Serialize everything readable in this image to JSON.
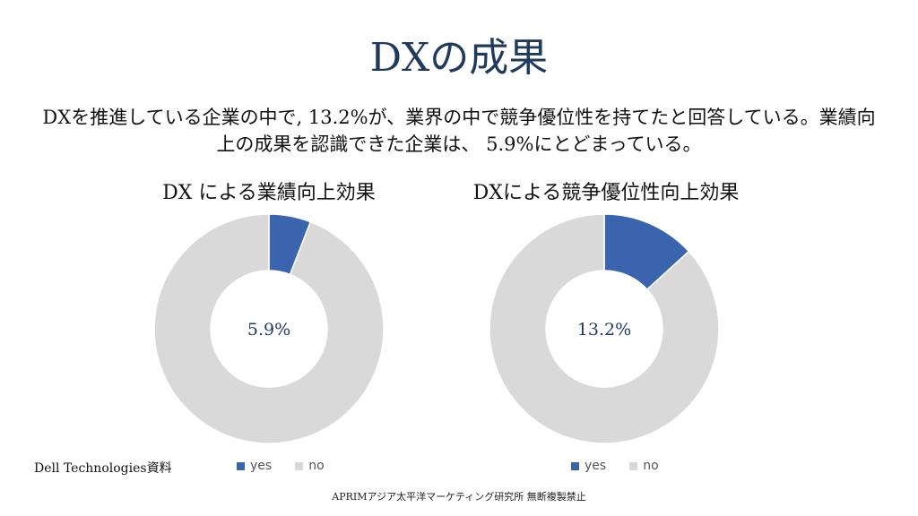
{
  "title": "DXの成果",
  "lead": "DXを推進している企業の中で, 13.2%が、業界の中で競争優位性を持てたと回答している。業績向上の成果を認識できた企業は、 5.9%にとどまっている。",
  "source": "Dell Technologies資料",
  "footer": "APRIMアジア太平洋マーケティング研究所 無断複製禁止",
  "colors": {
    "yes": "#3a64ad",
    "no": "#d9d9d9",
    "title": "#1f3a5c"
  },
  "chart_data": [
    {
      "type": "pie",
      "title": "DX による業績向上効果",
      "categories": [
        "yes",
        "no"
      ],
      "values": [
        5.9,
        94.1
      ],
      "center_label": "5.9%",
      "legend": "bottom"
    },
    {
      "type": "pie",
      "title": "DXによる競争優位性向上効果",
      "categories": [
        "yes",
        "no"
      ],
      "values": [
        13.2,
        86.8
      ],
      "center_label": "13.2%",
      "legend": "bottom"
    }
  ]
}
